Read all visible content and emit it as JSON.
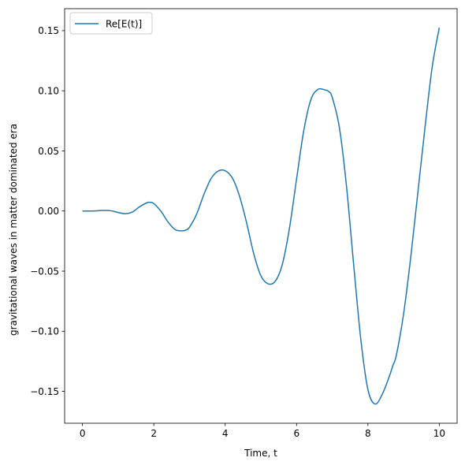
{
  "chart_data": {
    "type": "line",
    "title": "",
    "xlabel": "Time, t",
    "ylabel": "gravitational waves in matter dominated era",
    "xlim": [
      -0.5,
      10.5
    ],
    "ylim": [
      -0.1765,
      0.1683
    ],
    "xticks": [
      0,
      2,
      4,
      6,
      8,
      10
    ],
    "xtick_labels": [
      "0",
      "2",
      "4",
      "6",
      "8",
      "10"
    ],
    "yticks": [
      -0.15,
      -0.1,
      -0.05,
      0.0,
      0.05,
      0.1,
      0.15
    ],
    "ytick_labels": [
      "−0.15",
      "−0.10",
      "−0.05",
      "0.00",
      "0.05",
      "0.10",
      "0.15"
    ],
    "grid": false,
    "legend": {
      "position": "top-left",
      "entries": [
        "Re[E(t)]"
      ]
    },
    "series": [
      {
        "name": "Re[E(t)]",
        "color": "#1f77b4",
        "x": [
          0,
          0.2,
          0.4,
          0.6,
          0.8,
          1.0,
          1.2,
          1.4,
          1.6,
          1.8,
          1.9,
          2.0,
          2.2,
          2.4,
          2.6,
          2.8,
          2.9,
          3.0,
          3.2,
          3.4,
          3.6,
          3.8,
          4.0,
          4.2,
          4.4,
          4.6,
          4.8,
          5.0,
          5.2,
          5.4,
          5.6,
          5.8,
          6.0,
          6.2,
          6.4,
          6.6,
          6.8,
          6.9,
          7.0,
          7.2,
          7.4,
          7.6,
          7.8,
          8.0,
          8.2,
          8.4,
          8.6,
          8.7,
          8.8,
          9.0,
          9.2,
          9.4,
          9.6,
          9.8,
          10.0
        ],
        "y": [
          0.0,
          0.0,
          0.0002,
          0.0005,
          0.0002,
          -0.0012,
          -0.0022,
          -0.0008,
          0.0035,
          0.0068,
          0.0072,
          0.0062,
          -0.0002,
          -0.0092,
          -0.0155,
          -0.0165,
          -0.0158,
          -0.0135,
          -0.0025,
          0.0135,
          0.0268,
          0.0332,
          0.0335,
          0.0275,
          0.0125,
          -0.0098,
          -0.0355,
          -0.0538,
          -0.0605,
          -0.0585,
          -0.0445,
          -0.0145,
          0.0265,
          0.0665,
          0.0925,
          0.1012,
          0.1007,
          0.0995,
          0.0945,
          0.0695,
          0.0205,
          -0.0445,
          -0.1065,
          -0.1485,
          -0.1605,
          -0.1525,
          -0.1375,
          -0.1285,
          -0.1195,
          -0.0855,
          -0.0385,
          0.0155,
          0.0695,
          0.1195,
          0.1525
        ]
      }
    ]
  }
}
